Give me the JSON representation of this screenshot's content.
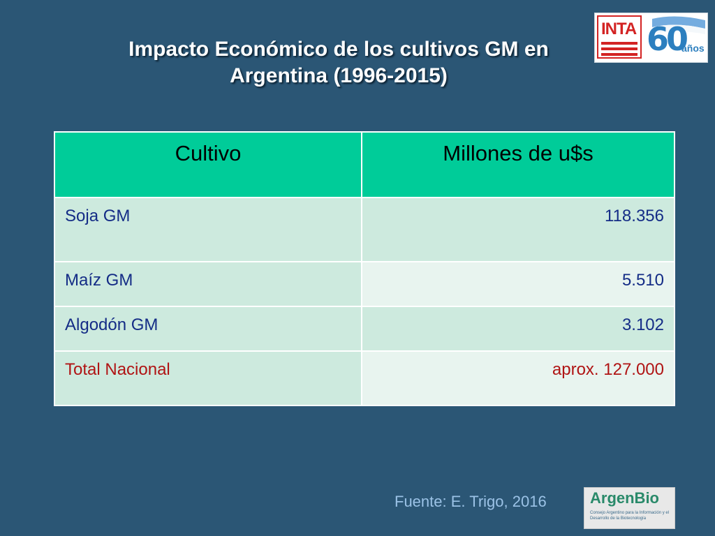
{
  "slide": {
    "title_line1": "Impacto Económico  de los cultivos GM en",
    "title_line2": "Argentina (1996-2015)"
  },
  "logos": {
    "inta_text": "INTA",
    "sixty_number": "60",
    "sixty_label": "años",
    "argenbio_name": "ArgenBio",
    "argenbio_subtitle": "Consejo Argentino para la Información y el Desarrollo de la Biotecnología"
  },
  "table": {
    "headers": [
      "Cultivo",
      "Millones de u$s"
    ],
    "rows": [
      {
        "crop": "Soja GM",
        "value": "118.356"
      },
      {
        "crop": "Maíz GM",
        "value": "5.510"
      },
      {
        "crop": "Algodón GM",
        "value": "3.102"
      },
      {
        "crop": "Total Nacional",
        "value": "aprox. 127.000"
      }
    ]
  },
  "footer": {
    "source": "Fuente: E. Trigo, 2016"
  },
  "colors": {
    "background": "#2b5675",
    "header_fill": "#00cc99",
    "cell_fill": "#cdeade",
    "text_blue": "#142c86",
    "total_red": "#b01414",
    "source_text": "#9bc2e6"
  }
}
